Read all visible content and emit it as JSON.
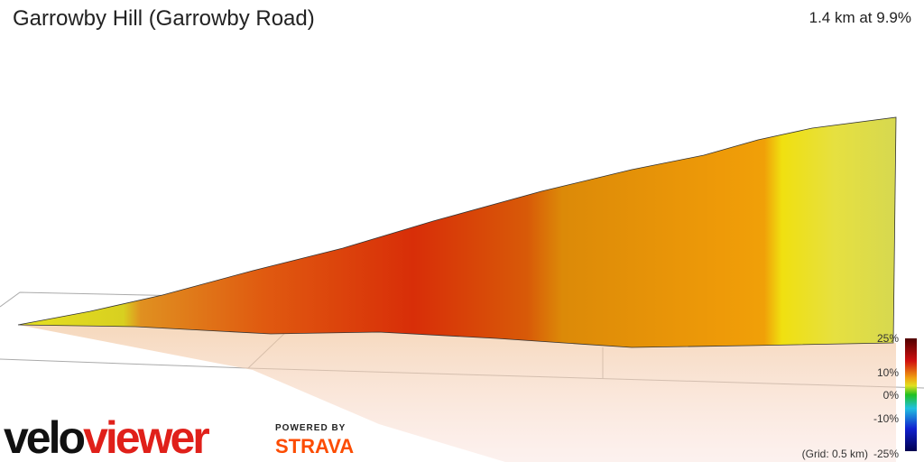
{
  "header": {
    "title": "Garrowby Hill (Garrowby Road)",
    "stats": "1.4 km at 9.9%"
  },
  "legend": {
    "labels": [
      "25%",
      "10%",
      "0%",
      "-10%",
      "-25%"
    ],
    "grid_note": "(Grid: 0.5 km)"
  },
  "branding": {
    "logo_part1": "velo",
    "logo_part2": "viewer",
    "powered_by": "POWERED BY",
    "partner": "STRAVA"
  }
}
